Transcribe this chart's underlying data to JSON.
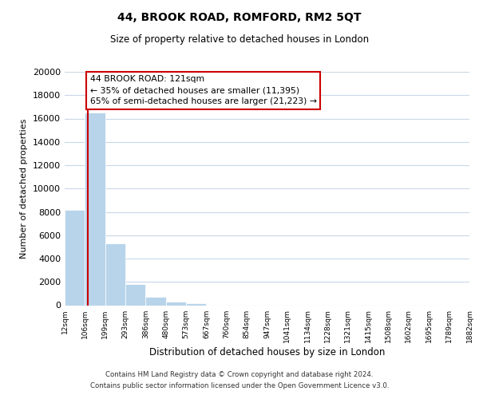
{
  "title": "44, BROOK ROAD, ROMFORD, RM2 5QT",
  "subtitle": "Size of property relative to detached houses in London",
  "xlabel": "Distribution of detached houses by size in London",
  "ylabel": "Number of detached properties",
  "bin_labels": [
    "12sqm",
    "106sqm",
    "199sqm",
    "293sqm",
    "386sqm",
    "480sqm",
    "573sqm",
    "667sqm",
    "760sqm",
    "854sqm",
    "947sqm",
    "1041sqm",
    "1134sqm",
    "1228sqm",
    "1321sqm",
    "1415sqm",
    "1508sqm",
    "1602sqm",
    "1695sqm",
    "1789sqm",
    "1882sqm"
  ],
  "bar_heights": [
    8200,
    16500,
    5300,
    1800,
    750,
    300,
    200,
    0,
    0,
    0,
    0,
    0,
    0,
    0,
    0,
    0,
    0,
    0,
    0,
    0
  ],
  "bar_color": "#b8d4ea",
  "vline_x": 1.15,
  "vline_color": "#cc0000",
  "annotation_title": "44 BROOK ROAD: 121sqm",
  "annotation_line1": "← 35% of detached houses are smaller (11,395)",
  "annotation_line2": "65% of semi-detached houses are larger (21,223) →",
  "annotation_box_color": "#ffffff",
  "annotation_box_edge": "#cc0000",
  "ylim": [
    0,
    20000
  ],
  "yticks": [
    0,
    2000,
    4000,
    6000,
    8000,
    10000,
    12000,
    14000,
    16000,
    18000,
    20000
  ],
  "footer1": "Contains HM Land Registry data © Crown copyright and database right 2024.",
  "footer2": "Contains public sector information licensed under the Open Government Licence v3.0.",
  "background_color": "#ffffff",
  "grid_color": "#c8d8e8",
  "num_bins": 20
}
